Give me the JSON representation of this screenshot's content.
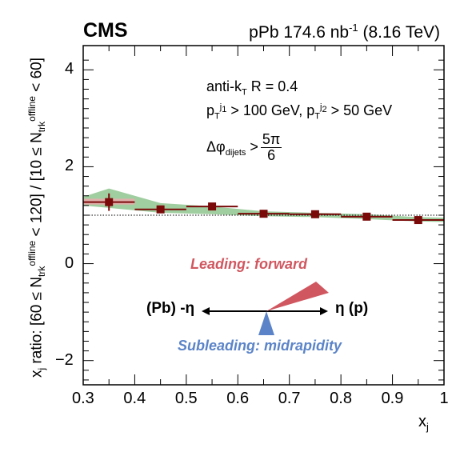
{
  "header": {
    "experiment": "CMS",
    "lumi_prefix": "pPb 174.6 nb",
    "lumi_exp": "-1",
    "energy": "(8.16 TeV)"
  },
  "annotations": {
    "jet_algo": "anti-k",
    "jet_algo_sub": "T",
    "jet_radius": "R = 0.4",
    "pt1_sub": "T",
    "pt1_sup": "j",
    "pt1_sup2": "1",
    "pt1_cut": "> 100 GeV,",
    "pt2_sub": "T",
    "pt2_sup": "j",
    "pt2_sup2": "2",
    "pt2_cut": "> 50 GeV",
    "dphi_label": "Δφ",
    "dphi_sub": "dijets",
    "dphi_rel": ">",
    "dphi_num": "5π",
    "dphi_den": "6"
  },
  "ylabel": {
    "p1": "x",
    "p1_sub": "j",
    "p2": " ratio: [60 ≤ N",
    "n_sub": "trk",
    "n_sup": "offline",
    "p3": " < 120] / [10 ≤ N",
    "p4": " < 60]"
  },
  "xlabel": {
    "text": "x",
    "sub": "j"
  },
  "diagram": {
    "leading": "Leading: forward",
    "subleading": "Subleading: midrapidity",
    "left": "(Pb) -η",
    "right": "η (p)"
  },
  "colors": {
    "marker": "#7a0a0a",
    "syst_green": "#8fc58f",
    "syst_red": "#f0a8ad",
    "leading": "#d05760",
    "subleading": "#5b84c8"
  },
  "chart_data": {
    "type": "scatter",
    "xlabel": "xj",
    "ylabel": "xj ratio: [60 ≤ Ntrk offline < 120] / [10 ≤ Ntrk offline < 60]",
    "xlim": [
      0.3,
      1.0
    ],
    "ylim": [
      -2.5,
      4.5
    ],
    "xticks": [
      0.3,
      0.4,
      0.5,
      0.6,
      0.7,
      0.8,
      0.9,
      1
    ],
    "yticks": [
      -2,
      0,
      2,
      4
    ],
    "reference_line": 1.0,
    "grid": false,
    "series": [
      {
        "x": [
          0.35,
          0.45,
          0.55,
          0.65,
          0.75,
          0.85,
          0.95
        ],
        "xerr": [
          0.05,
          0.05,
          0.05,
          0.05,
          0.05,
          0.05,
          0.05
        ],
        "y": [
          1.27,
          1.12,
          1.18,
          1.03,
          1.02,
          0.97,
          0.9
        ],
        "yerr": [
          0.18,
          0.06,
          0.05,
          0.04,
          0.04,
          0.04,
          0.05
        ]
      }
    ],
    "syst_band": {
      "x": [
        0.3,
        0.35,
        0.45,
        0.55,
        0.65,
        0.75,
        0.85,
        0.95,
        1.0
      ],
      "upper": [
        1.38,
        1.55,
        1.25,
        1.18,
        1.08,
        1.05,
        1.02,
        0.96,
        0.95
      ],
      "lower": [
        1.2,
        1.15,
        1.05,
        1.02,
        0.98,
        0.96,
        0.92,
        0.87,
        0.86
      ]
    },
    "syst_box": {
      "x": [
        0.3,
        0.4
      ],
      "y": [
        1.22,
        1.34
      ]
    }
  }
}
